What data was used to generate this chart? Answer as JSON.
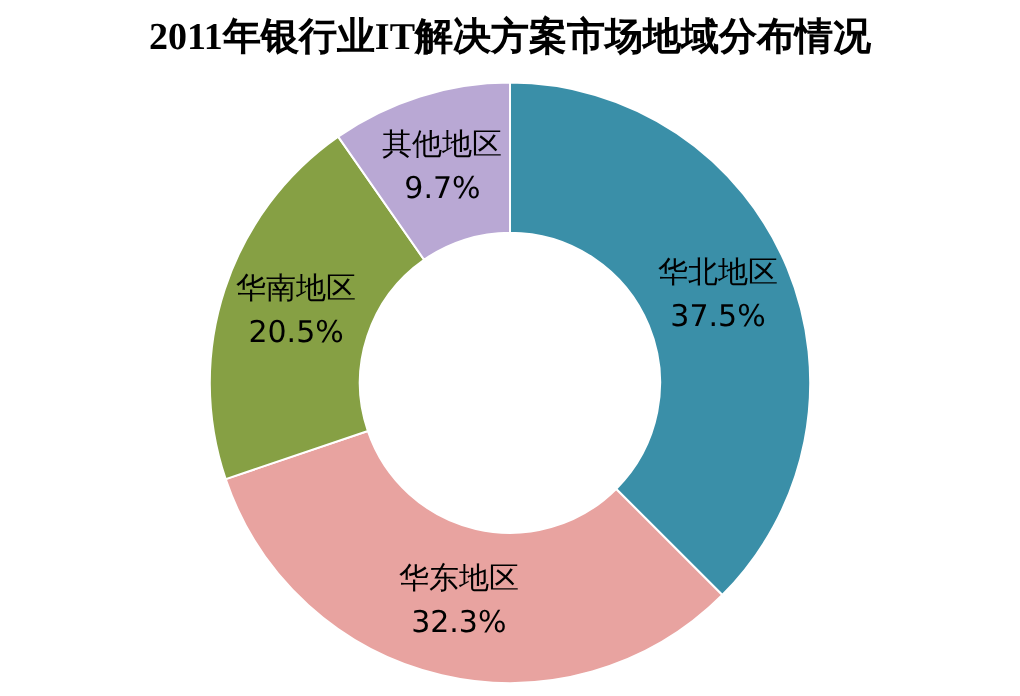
{
  "chart_data": {
    "type": "donut",
    "title": "2011年银行业IT解决方案市场地域分布情况",
    "categories": [
      "华北地区",
      "华东地区",
      "华南地区",
      "其他地区"
    ],
    "values": [
      37.5,
      32.3,
      20.5,
      9.7
    ],
    "colors": [
      "#3a8fa8",
      "#e8a3a0",
      "#86a044",
      "#b9a8d4"
    ],
    "value_labels": [
      "37.5%",
      "32.3%",
      "20.5%",
      "9.7%"
    ],
    "legend": false
  }
}
